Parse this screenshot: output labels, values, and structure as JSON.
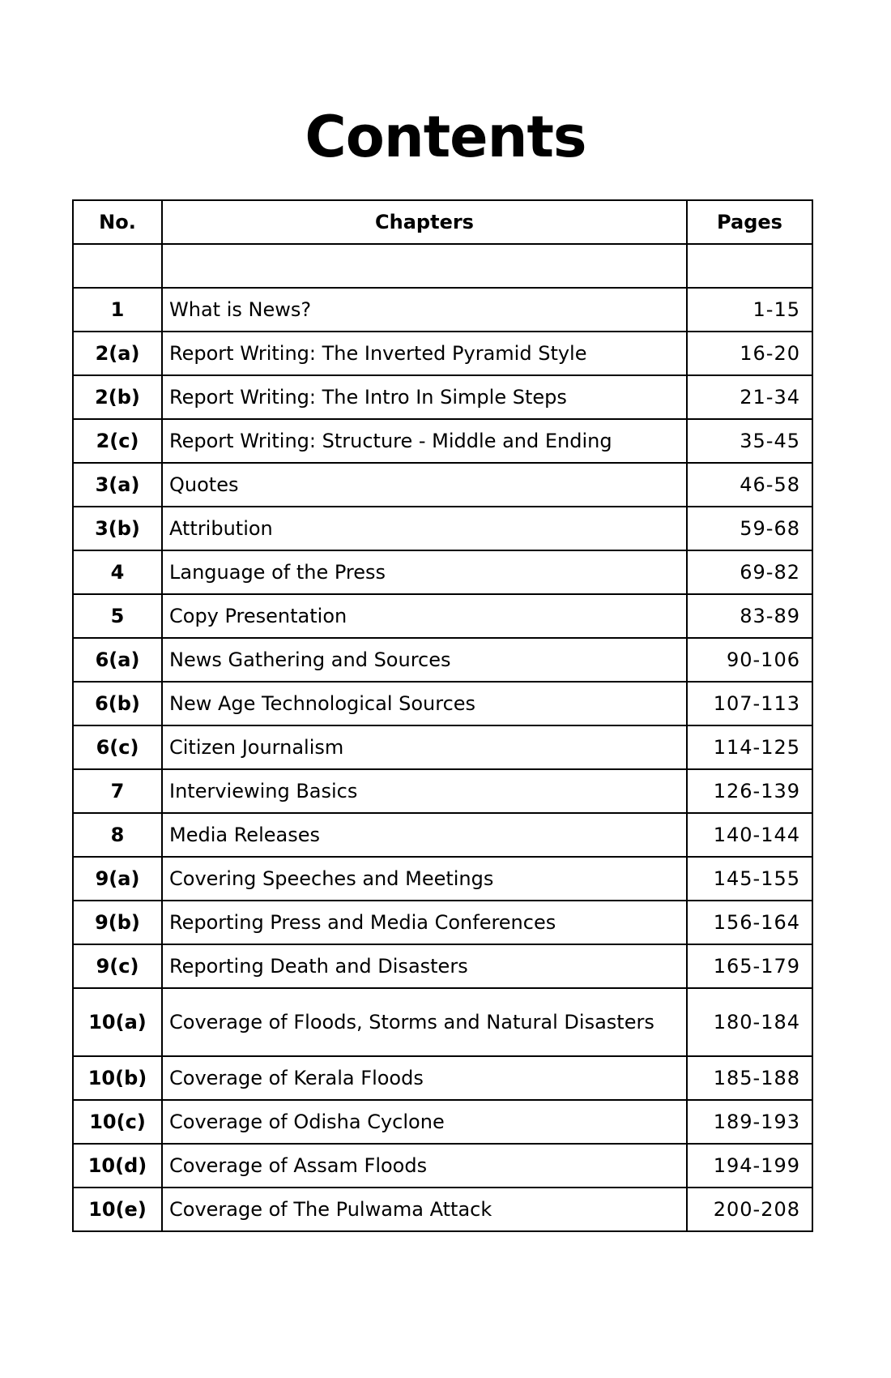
{
  "title": "Contents",
  "headers": {
    "no": "No.",
    "chapters": "Chapters",
    "pages": "Pages"
  },
  "rows": [
    {
      "no": "1",
      "chapter": "What is News?",
      "pages": "1-15"
    },
    {
      "no": "2(a)",
      "chapter": "Report Writing: The Inverted Pyramid Style",
      "pages": "16-20"
    },
    {
      "no": "2(b)",
      "chapter": "Report Writing: The Intro In Simple Steps",
      "pages": "21-34"
    },
    {
      "no": "2(c)",
      "chapter": "Report Writing: Structure - Middle and Ending",
      "pages": "35-45"
    },
    {
      "no": "3(a)",
      "chapter": "Quotes",
      "pages": "46-58"
    },
    {
      "no": "3(b)",
      "chapter": "Attribution",
      "pages": "59-68"
    },
    {
      "no": "4",
      "chapter": "Language of the Press",
      "pages": "69-82"
    },
    {
      "no": "5",
      "chapter": "Copy Presentation",
      "pages": "83-89"
    },
    {
      "no": "6(a)",
      "chapter": "News Gathering and Sources",
      "pages": "90-106"
    },
    {
      "no": "6(b)",
      "chapter": "New Age Technological Sources",
      "pages": "107-113"
    },
    {
      "no": "6(c)",
      "chapter": "Citizen Journalism",
      "pages": "114-125"
    },
    {
      "no": "7",
      "chapter": "Interviewing Basics",
      "pages": "126-139"
    },
    {
      "no": "8",
      "chapter": "Media Releases",
      "pages": "140-144"
    },
    {
      "no": "9(a)",
      "chapter": "Covering Speeches and Meetings",
      "pages": "145-155"
    },
    {
      "no": "9(b)",
      "chapter": "Reporting Press and Media Conferences",
      "pages": "156-164"
    },
    {
      "no": "9(c)",
      "chapter": "Reporting Death and Disasters",
      "pages": "165-179"
    },
    {
      "no": "10(a)",
      "chapter": "Coverage of Floods, Storms and Natural Disasters",
      "pages": "180-184"
    },
    {
      "no": "10(b)",
      "chapter": "Coverage of Kerala Floods",
      "pages": "185-188"
    },
    {
      "no": "10(c)",
      "chapter": "Coverage of Odisha Cyclone",
      "pages": "189-193"
    },
    {
      "no": "10(d)",
      "chapter": "Coverage of Assam Floods",
      "pages": "194-199"
    },
    {
      "no": "10(e)",
      "chapter": "Coverage of The Pulwama Attack",
      "pages": "200-208"
    }
  ]
}
